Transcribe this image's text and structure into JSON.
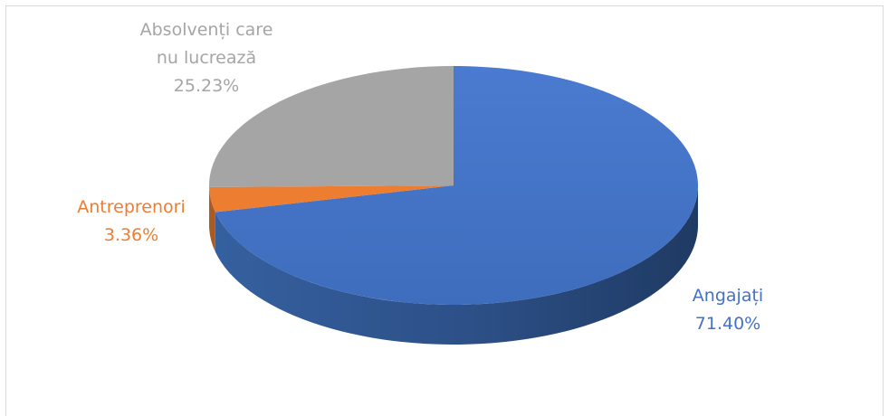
{
  "chart_data": {
    "type": "pie",
    "style": "3d",
    "categories": [
      "Angajați",
      "Antreprenori",
      "Absolvenți care nu lucrează"
    ],
    "values": [
      71.4,
      3.36,
      25.23
    ],
    "colors": [
      "#4472c4",
      "#ed7d31",
      "#a5a5a5"
    ],
    "labels": [
      {
        "lines": [
          "Angajați"
        ],
        "value_text": "71.40%"
      },
      {
        "lines": [
          "Antreprenori"
        ],
        "value_text": "3.36%"
      },
      {
        "lines": [
          "Absolvenți care",
          "nu lucrează"
        ],
        "value_text": "25.23%"
      }
    ]
  }
}
